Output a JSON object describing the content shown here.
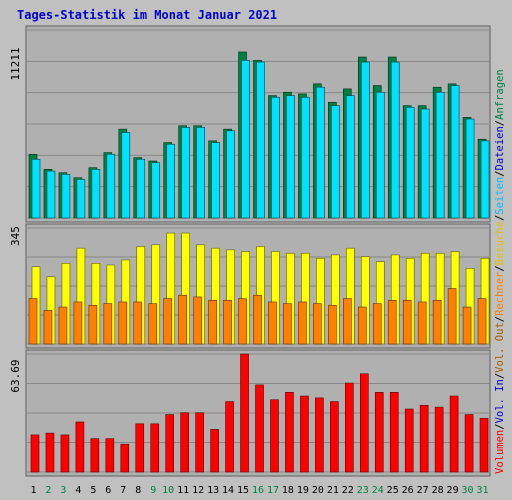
{
  "title": "Tages-Statistik im Monat Januar 2021",
  "colors": {
    "background": "#c0c0c0",
    "plot_bg": "#b0b0b0",
    "grid": "#888888",
    "title": "#0000cc",
    "hits": "#008040",
    "files": "#00e0ff",
    "pages": "#00c0ff",
    "visits": "#ffff00",
    "sites": "#ff8000",
    "kbytes": "#ff0000",
    "weekend_label": "#008040",
    "weekday_label": "#000000"
  },
  "side_labels": {
    "top": [
      {
        "text": "Anfragen",
        "color": "#008040"
      },
      {
        "text": "/",
        "color": "#000000"
      },
      {
        "text": "Dateien",
        "color": "#0000cc"
      },
      {
        "text": "/",
        "color": "#000000"
      },
      {
        "text": "Seiten",
        "color": "#00c0ff"
      },
      {
        "text": "/",
        "color": "#000000"
      },
      {
        "text": "Besuche",
        "color": "#e0c000"
      },
      {
        "text": "/",
        "color": "#000000"
      },
      {
        "text": "Rechner",
        "color": "#ff8000"
      },
      {
        "text": "/",
        "color": "#000000"
      },
      {
        "text": "Vol. Out",
        "color": "#a06000"
      },
      {
        "text": "/",
        "color": "#000000"
      },
      {
        "text": "Vol. In",
        "color": "#0000cc"
      },
      {
        "text": "/",
        "color": "#000000"
      },
      {
        "text": "Volumen",
        "color": "#ff0000"
      }
    ]
  },
  "chart_data": [
    {
      "type": "bar",
      "panel": "hits-files-pages",
      "ymax_label": "11211",
      "ymax": 11211,
      "categories": [
        "1",
        "2",
        "3",
        "4",
        "5",
        "6",
        "7",
        "8",
        "9",
        "10",
        "11",
        "12",
        "13",
        "14",
        "15",
        "16",
        "17",
        "18",
        "19",
        "20",
        "21",
        "22",
        "23",
        "24",
        "25",
        "26",
        "27",
        "28",
        "29",
        "30",
        "31"
      ],
      "series": [
        {
          "name": "Anfragen",
          "values": [
            3800,
            2900,
            2700,
            2400,
            3000,
            3900,
            5300,
            3600,
            3400,
            4500,
            5500,
            5500,
            4600,
            5300,
            9900,
            9400,
            7300,
            7500,
            7400,
            8000,
            6900,
            7700,
            9600,
            7900,
            9600,
            6700,
            6700,
            7800,
            8000,
            6000,
            4700
          ]
        },
        {
          "name": "Dateien",
          "values": [
            3500,
            2800,
            2600,
            2300,
            2900,
            3800,
            5100,
            3500,
            3300,
            4400,
            5400,
            5400,
            4500,
            5200,
            9400,
            9300,
            7200,
            7300,
            7200,
            7800,
            6700,
            7300,
            9300,
            7500,
            9300,
            6600,
            6500,
            7500,
            7900,
            5900,
            4600
          ]
        }
      ],
      "categories_weekend": [
        "2",
        "3",
        "9",
        "10",
        "16",
        "17",
        "23",
        "24",
        "30",
        "31"
      ]
    },
    {
      "type": "bar",
      "panel": "visits-sites",
      "ymax_label": "345",
      "ymax": 345,
      "series": [
        {
          "name": "Besuche",
          "values": [
            230,
            200,
            240,
            285,
            240,
            235,
            250,
            290,
            295,
            330,
            330,
            295,
            285,
            280,
            275,
            290,
            275,
            270,
            270,
            255,
            265,
            285,
            260,
            245,
            265,
            255,
            270,
            270,
            275,
            225,
            255
          ]
        },
        {
          "name": "Rechner",
          "values": [
            135,
            100,
            110,
            125,
            115,
            120,
            125,
            125,
            120,
            135,
            145,
            140,
            130,
            130,
            135,
            145,
            125,
            120,
            125,
            120,
            115,
            135,
            110,
            120,
            130,
            130,
            125,
            130,
            165,
            110,
            135
          ]
        }
      ]
    },
    {
      "type": "bar",
      "panel": "volume",
      "ymax_label": "63.69",
      "ymax": 63.69,
      "series": [
        {
          "name": "Volumen",
          "values": [
            20,
            21,
            20,
            27,
            18,
            18,
            15,
            26,
            26,
            31,
            32,
            32,
            23,
            38,
            63.69,
            47,
            39,
            43,
            41,
            40,
            38,
            48,
            53,
            43,
            43,
            34,
            36,
            35,
            41,
            31,
            29
          ]
        }
      ]
    }
  ]
}
